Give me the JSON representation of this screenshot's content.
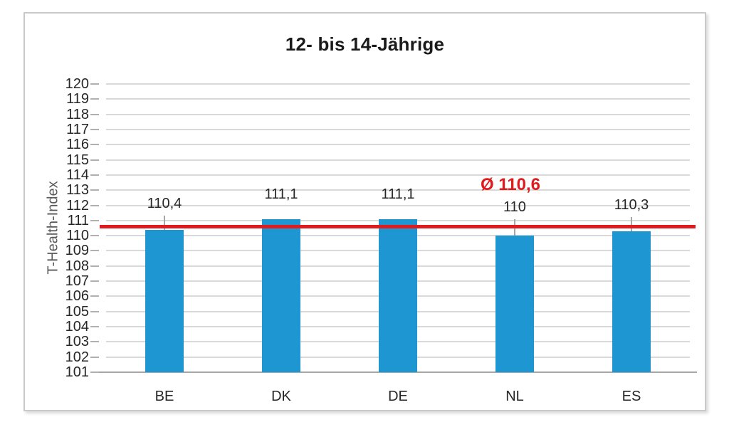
{
  "chart_data": {
    "type": "bar",
    "title": "12- bis 14-Jährige",
    "ylabel": "T-Health-Index",
    "xlabel": "",
    "categories": [
      "BE",
      "DK",
      "DE",
      "NL",
      "ES"
    ],
    "values": [
      110.4,
      111.1,
      111.1,
      110,
      110.3
    ],
    "value_labels": [
      "110,4",
      "111,1",
      "111,1",
      "110",
      "110,3"
    ],
    "error_whisker_tops": [
      111.3,
      null,
      null,
      111.1,
      111.25
    ],
    "mean_line": {
      "value": 110.6,
      "label": "Ø 110,6"
    },
    "ylim": [
      101,
      120
    ],
    "ytick_step": 1,
    "ytick_labels": [
      "101",
      "102",
      "103",
      "104",
      "105",
      "106",
      "107",
      "108",
      "109",
      "110",
      "111",
      "112",
      "113",
      "114",
      "115",
      "116",
      "117",
      "118",
      "119",
      "120"
    ],
    "grid": true,
    "legend": null,
    "colors": {
      "bar": "#1e96d2",
      "mean_line": "#e01b1e",
      "mean_label_text": "#e01b1e",
      "gridline": "#d9d9d9",
      "axis_line": "#a6a6a6",
      "tick_mark": "#b0b0b0",
      "error_whisker": "#a6a6a6",
      "label_text": "#262626",
      "ylabel_text": "#595959",
      "title_text": "#1a1a1a",
      "frame_border": "#c9c9c9",
      "background": "#ffffff"
    }
  }
}
